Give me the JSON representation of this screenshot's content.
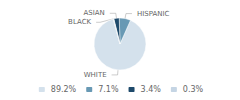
{
  "chart_data": {
    "type": "pie",
    "categories": [
      "WHITE",
      "HISPANIC",
      "ASIAN",
      "BLACK"
    ],
    "values": [
      89.2,
      7.1,
      3.4,
      0.3
    ],
    "value_labels": [
      "89.2%",
      "7.1%",
      "3.4%",
      "0.3%"
    ],
    "colors": [
      "#d4e1ec",
      "#6899b4",
      "#1e4a6b",
      "#c5d5e4"
    ],
    "legend": "bottom"
  }
}
